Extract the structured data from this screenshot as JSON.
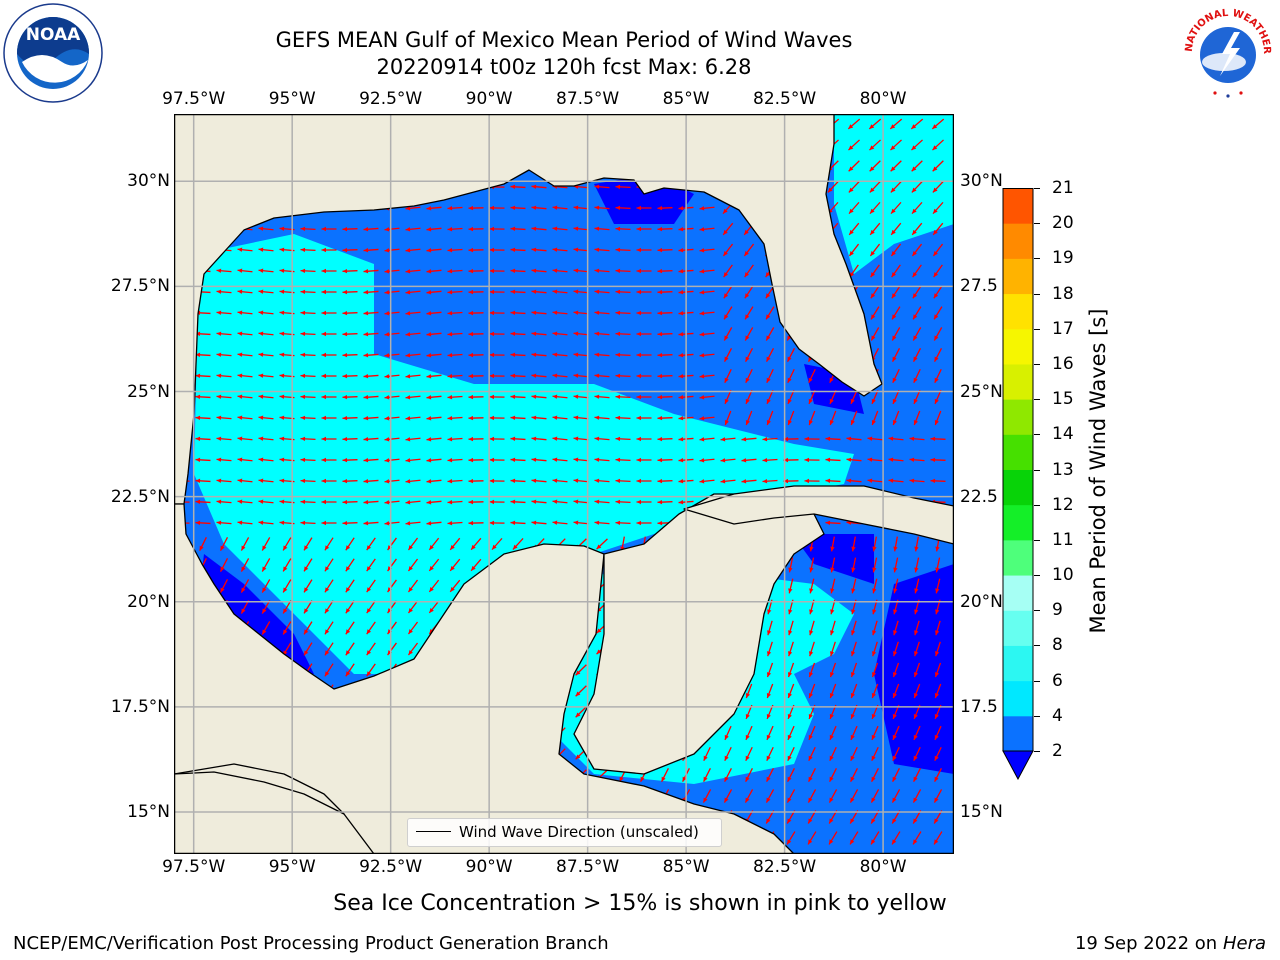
{
  "title": {
    "line1": "GEFS MEAN Gulf of Mexico Mean Period of Wind Waves",
    "line2": "20220914 t00z 120h fcst   Max: 6.28"
  },
  "logos": {
    "left": "NOAA",
    "right": "NATIONAL WEATHER SERVICE"
  },
  "map": {
    "lon_labels": [
      "97.5°W",
      "95°W",
      "92.5°W",
      "90°W",
      "87.5°W",
      "85°W",
      "82.5°W",
      "80°W"
    ],
    "lat_labels_left": [
      "30°N",
      "27.5°N",
      "25°N",
      "22.5°N",
      "20°N",
      "17.5°N",
      "15°N"
    ],
    "lat_labels_right": [
      "30°N",
      "27.5",
      "25°N",
      "22.5",
      "20°N",
      "17.5",
      "15°N"
    ],
    "lon_range": [
      -98,
      -78.2
    ],
    "lat_range": [
      14,
      31.6
    ],
    "land_color": "#efecdc",
    "arrow_color": "#ff0000"
  },
  "legend": {
    "label": "Wind Wave Direction (unscaled)"
  },
  "colorbar": {
    "title": "Mean Period of Wind Waves [s]",
    "ticks": [
      "2",
      "4",
      "6",
      "8",
      "9",
      "10",
      "11",
      "12",
      "13",
      "14",
      "15",
      "16",
      "17",
      "18",
      "19",
      "20",
      "21"
    ],
    "colors": [
      "#0b72ff",
      "#00e8ff",
      "#2cf7f2",
      "#66fff0",
      "#a6fff4",
      "#4eff7b",
      "#14ef28",
      "#08d308",
      "#46e000",
      "#8fe800",
      "#d8f000",
      "#f6f600",
      "#ffe200",
      "#ffb300",
      "#ff8a00",
      "#ff5500",
      "#ff2000",
      "#ff0000"
    ],
    "under_color": "#0000ff"
  },
  "footer": {
    "ice_note": "Sea Ice Concentration > 15% is shown in pink to yellow",
    "left": "NCEP/EMC/Verification Post Processing Product Generation Branch",
    "right_date": "19 Sep 2022 on",
    "right_host": "Hera"
  }
}
